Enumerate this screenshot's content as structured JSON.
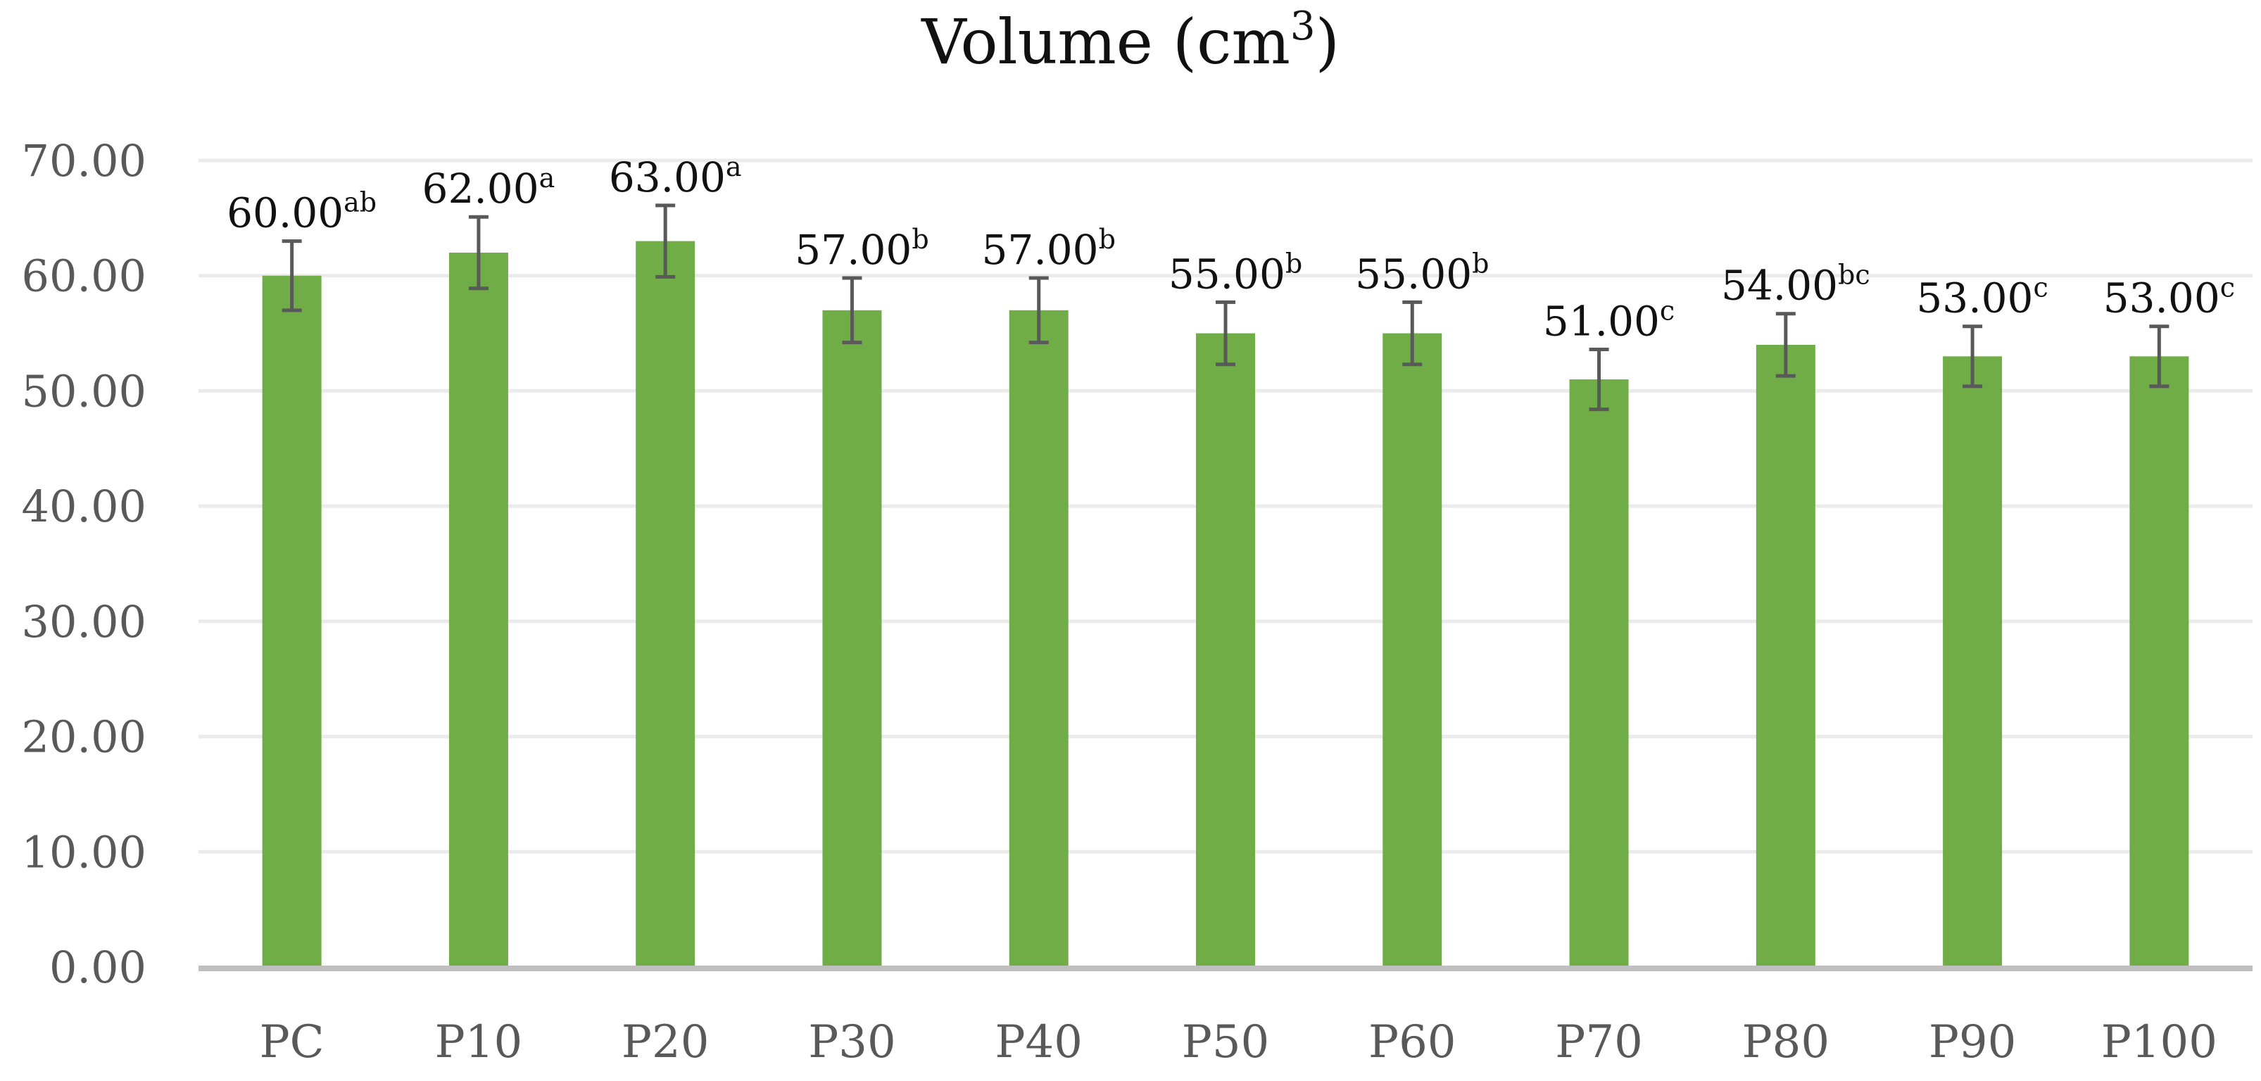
{
  "chart_data": {
    "type": "bar",
    "title": "Volume (cm",
    "title_sup": "3",
    "title_end": ")",
    "categories": [
      "PC",
      "P10",
      "P20",
      "P30",
      "P40",
      "P50",
      "P60",
      "P70",
      "P80",
      "P90",
      "P100"
    ],
    "values": [
      60.0,
      62.0,
      63.0,
      57.0,
      57.0,
      55.0,
      55.0,
      51.0,
      54.0,
      53.0,
      53.0
    ],
    "error": [
      3.0,
      3.1,
      3.1,
      2.8,
      2.8,
      2.7,
      2.7,
      2.6,
      2.7,
      2.6,
      2.6
    ],
    "value_labels": [
      "60.00",
      "62.00",
      "63.00",
      "57.00",
      "57.00",
      "55.00",
      "55.00",
      "51.00",
      "54.00",
      "53.00",
      "53.00"
    ],
    "letters": [
      "ab",
      "a",
      "a",
      "b",
      "b",
      "b",
      "b",
      "c",
      "bc",
      "c",
      "c"
    ],
    "y_ticks": [
      "0.00",
      "10.00",
      "20.00",
      "30.00",
      "40.00",
      "50.00",
      "60.00",
      "70.00"
    ],
    "ylim": [
      0,
      70
    ],
    "grid": true,
    "bar_color": "#70AD47",
    "error_color": "#595959",
    "grid_color": "#EBEBEB",
    "axis_color": "#BFBFBF"
  }
}
